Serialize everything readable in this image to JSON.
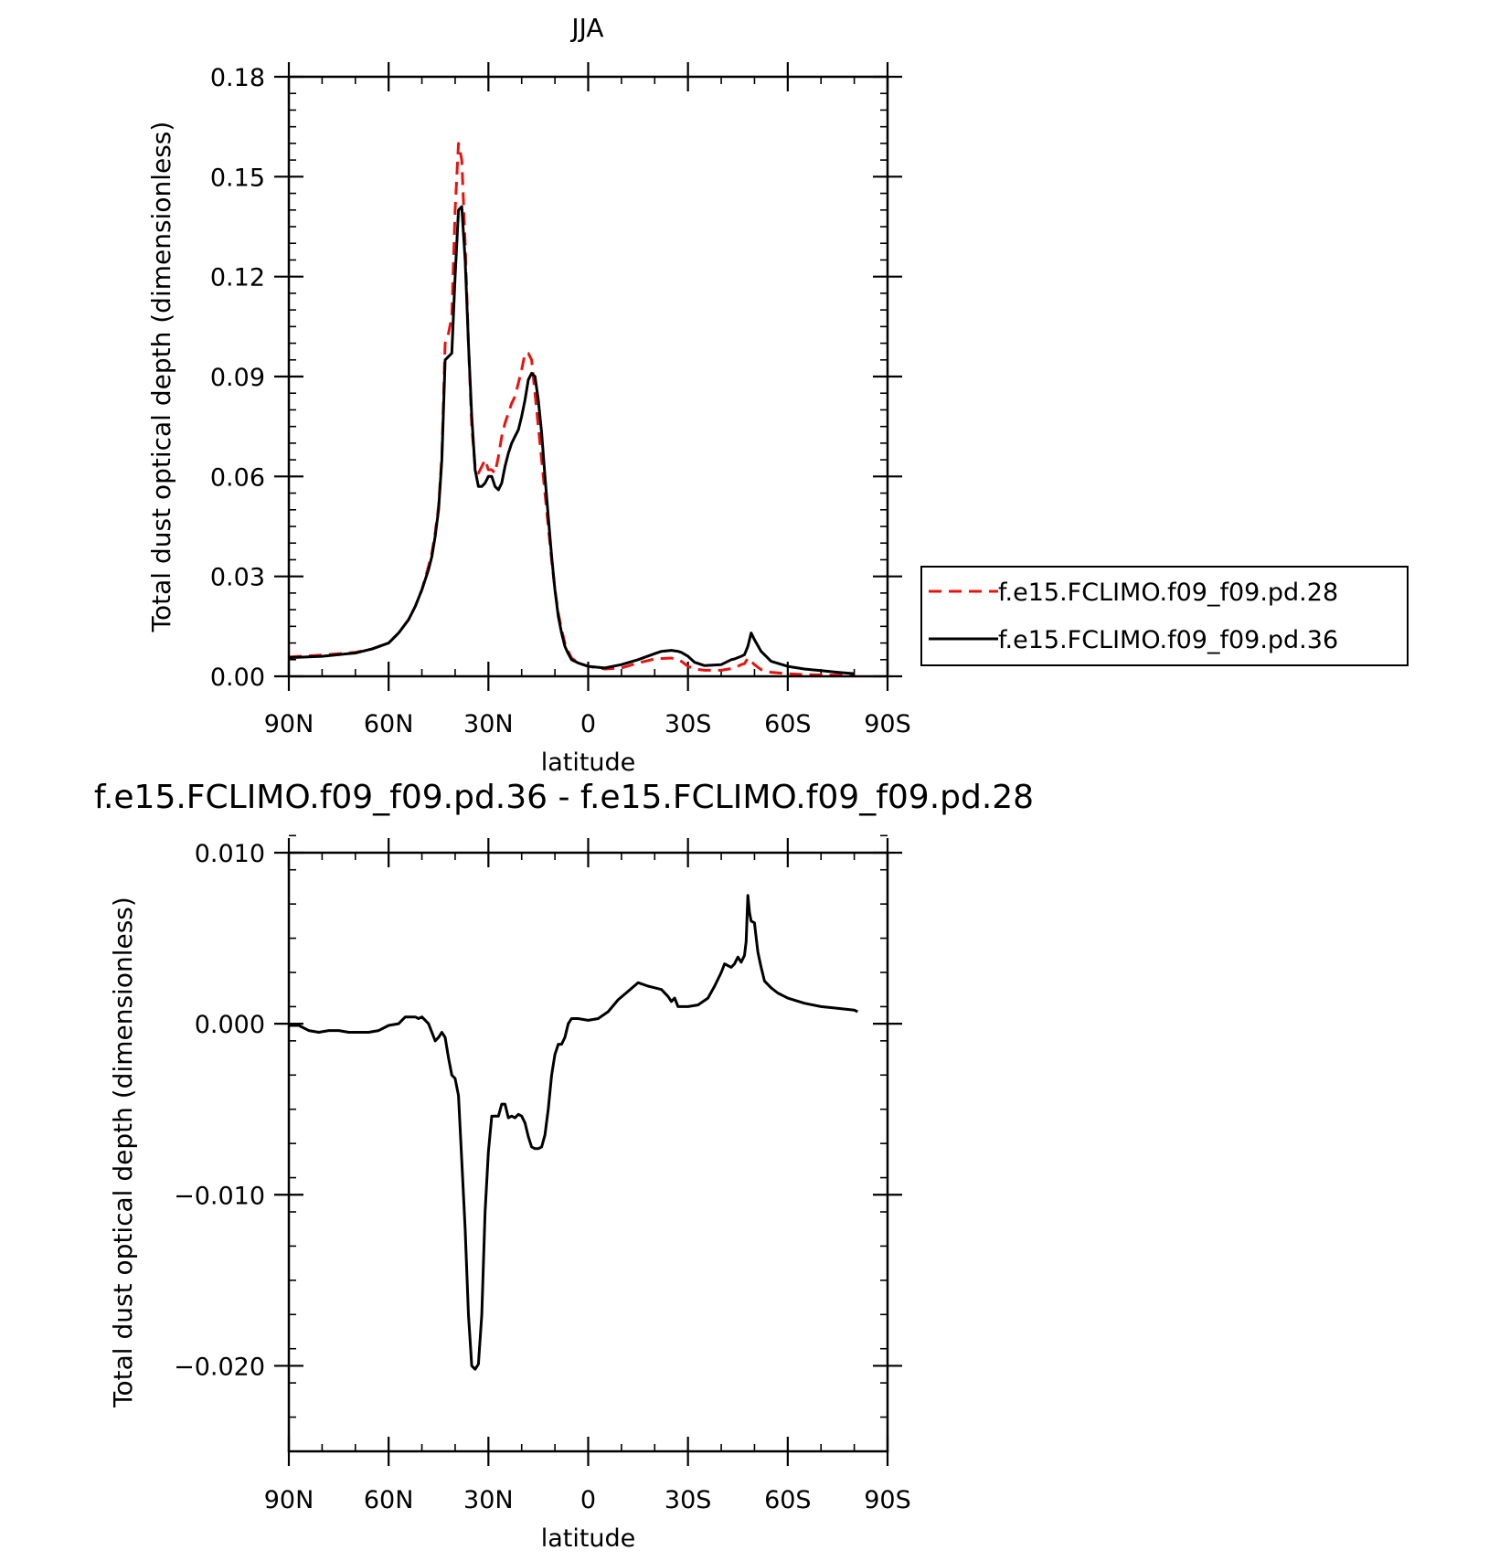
{
  "chart_data": [
    {
      "type": "line",
      "title": "JJA",
      "xlabel": "latitude",
      "ylabel": "Total dust optical depth (dimensionless)",
      "xlim": [
        90,
        -90
      ],
      "ylim": [
        0.0,
        0.18
      ],
      "x_ticks": [
        {
          "value": 90,
          "label": "90N"
        },
        {
          "value": 60,
          "label": "60N"
        },
        {
          "value": 30,
          "label": "30N"
        },
        {
          "value": 0,
          "label": "0"
        },
        {
          "value": -30,
          "label": "30S"
        },
        {
          "value": -60,
          "label": "60S"
        },
        {
          "value": -90,
          "label": "90S"
        }
      ],
      "y_ticks": [
        {
          "value": 0.0,
          "label": "0.00"
        },
        {
          "value": 0.03,
          "label": "0.03"
        },
        {
          "value": 0.06,
          "label": "0.06"
        },
        {
          "value": 0.09,
          "label": "0.09"
        },
        {
          "value": 0.12,
          "label": "0.12"
        },
        {
          "value": 0.15,
          "label": "0.15"
        },
        {
          "value": 0.18,
          "label": "0.18"
        }
      ],
      "legend_position": "right",
      "series": [
        {
          "name": "f.e15.FCLIMO.f09_f09.pd.28",
          "color": "#e8130f",
          "dash": "dashed",
          "x": [
            90,
            80,
            70,
            65,
            60,
            57,
            54,
            52,
            50,
            48,
            47,
            46,
            45,
            44,
            43,
            42,
            41,
            40,
            39,
            38,
            37,
            36,
            35,
            34,
            33,
            32,
            31,
            30,
            29,
            28,
            27,
            26,
            25,
            24,
            23,
            22,
            21,
            20,
            19,
            18,
            17,
            16,
            15,
            14,
            13,
            12,
            11,
            10,
            9,
            8,
            7,
            6,
            5,
            3,
            0,
            -5,
            -10,
            -15,
            -20,
            -25,
            -28,
            -30,
            -32,
            -35,
            -40,
            -44,
            -46,
            -47,
            -48,
            -49,
            -50,
            -52,
            -55,
            -60,
            -65,
            -70,
            -80
          ],
          "values": [
            0.0058,
            0.0064,
            0.0072,
            0.0082,
            0.01,
            0.013,
            0.017,
            0.021,
            0.026,
            0.033,
            0.037,
            0.043,
            0.051,
            0.066,
            0.1,
            0.103,
            0.108,
            0.14,
            0.16,
            0.155,
            0.13,
            0.1,
            0.075,
            0.063,
            0.061,
            0.063,
            0.065,
            0.062,
            0.062,
            0.061,
            0.066,
            0.072,
            0.076,
            0.079,
            0.082,
            0.084,
            0.088,
            0.092,
            0.097,
            0.097,
            0.095,
            0.085,
            0.075,
            0.065,
            0.055,
            0.045,
            0.035,
            0.026,
            0.019,
            0.014,
            0.01,
            0.0075,
            0.0055,
            0.004,
            0.003,
            0.0022,
            0.0025,
            0.004,
            0.0052,
            0.0055,
            0.0045,
            0.003,
            0.0022,
            0.0018,
            0.0018,
            0.0025,
            0.0035,
            0.0038,
            0.0055,
            0.0045,
            0.0035,
            0.002,
            0.0012,
            0.0008,
            0.0005,
            0.0004,
            0.0003
          ]
        },
        {
          "name": "f.e15.FCLIMO.f09_f09.pd.36",
          "color": "#000000",
          "dash": "solid",
          "x": [
            90,
            80,
            70,
            65,
            60,
            57,
            54,
            52,
            50,
            48,
            47,
            46,
            45,
            44,
            43,
            42,
            41,
            40,
            39,
            38,
            37,
            36,
            35,
            34,
            33,
            32,
            31,
            30,
            29,
            28,
            27,
            26,
            25,
            24,
            23,
            22,
            21,
            20,
            19,
            18,
            17,
            16,
            15,
            14,
            13,
            12,
            11,
            10,
            9,
            8,
            7,
            6,
            5,
            3,
            0,
            -5,
            -10,
            -15,
            -20,
            -22,
            -25,
            -27,
            -28,
            -30,
            -32,
            -35,
            -40,
            -43,
            -44,
            -46,
            -47,
            -48,
            -49,
            -50,
            -52,
            -55,
            -60,
            -65,
            -70,
            -75,
            -80
          ],
          "values": [
            0.0056,
            0.006,
            0.007,
            0.0082,
            0.01,
            0.013,
            0.017,
            0.021,
            0.026,
            0.032,
            0.036,
            0.042,
            0.05,
            0.065,
            0.095,
            0.096,
            0.097,
            0.12,
            0.14,
            0.141,
            0.125,
            0.1,
            0.078,
            0.062,
            0.057,
            0.057,
            0.058,
            0.06,
            0.06,
            0.057,
            0.056,
            0.058,
            0.063,
            0.067,
            0.07,
            0.072,
            0.074,
            0.078,
            0.083,
            0.089,
            0.091,
            0.09,
            0.083,
            0.073,
            0.06,
            0.048,
            0.036,
            0.026,
            0.018,
            0.013,
            0.009,
            0.0068,
            0.005,
            0.004,
            0.003,
            0.0025,
            0.0035,
            0.005,
            0.0068,
            0.0075,
            0.0078,
            0.0075,
            0.0072,
            0.006,
            0.0042,
            0.0032,
            0.0035,
            0.005,
            0.0052,
            0.006,
            0.0065,
            0.009,
            0.013,
            0.011,
            0.0075,
            0.0045,
            0.003,
            0.0022,
            0.0017,
            0.0012,
            0.0008
          ]
        }
      ]
    },
    {
      "type": "line",
      "title": "f.e15.FCLIMO.f09_f09.pd.36 - f.e15.FCLIMO.f09_f09.pd.28",
      "xlabel": "latitude",
      "ylabel": "Total dust optical depth (dimensionless)",
      "xlim": [
        90,
        -90
      ],
      "ylim": [
        -0.025,
        0.01
      ],
      "x_ticks": [
        {
          "value": 90,
          "label": "90N"
        },
        {
          "value": 60,
          "label": "60N"
        },
        {
          "value": 30,
          "label": "30N"
        },
        {
          "value": 0,
          "label": "0"
        },
        {
          "value": -30,
          "label": "30S"
        },
        {
          "value": -60,
          "label": "60S"
        },
        {
          "value": -90,
          "label": "90S"
        }
      ],
      "y_ticks": [
        {
          "value": 0.01,
          "label": "0.010"
        },
        {
          "value": 0.0,
          "label": "0.000"
        },
        {
          "value": -0.01,
          "label": "−0.010"
        },
        {
          "value": -0.02,
          "label": "−0.020"
        }
      ],
      "series": [
        {
          "color": "#000000",
          "dash": "solid",
          "x": [
            90,
            87,
            84,
            81,
            78,
            75,
            72,
            69,
            66,
            63,
            60,
            57,
            55,
            53,
            52,
            51,
            50,
            48,
            47,
            46,
            45,
            44,
            43,
            42,
            41,
            40,
            39,
            38,
            37,
            36,
            35,
            34,
            33,
            32,
            31,
            30,
            29,
            28,
            27,
            26,
            25,
            24,
            23,
            22,
            21,
            20,
            19,
            18,
            17,
            16,
            15,
            14,
            13,
            12,
            11,
            10,
            9,
            8,
            7,
            6,
            5,
            3,
            0,
            -3,
            -6,
            -9,
            -12,
            -15,
            -18,
            -20,
            -22,
            -24,
            -25,
            -26,
            -27,
            -28,
            -29,
            -30,
            -33,
            -36,
            -38,
            -40,
            -41,
            -42,
            -43,
            -44,
            -45,
            -46,
            -47,
            -47.5,
            -48,
            -48.5,
            -49,
            -50,
            -51,
            -52,
            -53,
            -55,
            -57,
            -60,
            -65,
            -70,
            -75,
            -80,
            -81
          ],
          "values": [
            -0.0001,
            -0.0001,
            -0.0004,
            -0.0005,
            -0.0004,
            -0.0004,
            -0.0005,
            -0.0005,
            -0.0005,
            -0.0004,
            -0.0001,
            0.0,
            0.0004,
            0.0004,
            0.0004,
            0.0003,
            0.0004,
            0.0,
            -0.0005,
            -0.001,
            -0.0008,
            -0.0005,
            -0.0008,
            -0.002,
            -0.003,
            -0.0032,
            -0.0042,
            -0.008,
            -0.012,
            -0.017,
            -0.02,
            -0.0202,
            -0.0199,
            -0.017,
            -0.011,
            -0.0075,
            -0.0054,
            -0.0054,
            -0.0054,
            -0.0047,
            -0.0047,
            -0.0055,
            -0.0054,
            -0.0055,
            -0.0053,
            -0.0054,
            -0.0058,
            -0.0066,
            -0.0072,
            -0.0073,
            -0.0073,
            -0.0072,
            -0.0065,
            -0.005,
            -0.003,
            -0.0018,
            -0.0012,
            -0.0012,
            -0.0008,
            0.0,
            0.0003,
            0.0003,
            0.0002,
            0.0003,
            0.0007,
            0.0014,
            0.0019,
            0.0024,
            0.0022,
            0.0021,
            0.002,
            0.0016,
            0.0013,
            0.0015,
            0.001,
            0.001,
            0.001,
            0.001,
            0.0011,
            0.0015,
            0.0022,
            0.003,
            0.0035,
            0.0034,
            0.0033,
            0.0035,
            0.0039,
            0.0036,
            0.004,
            0.0048,
            0.0075,
            0.0065,
            0.006,
            0.0059,
            0.0042,
            0.0033,
            0.0025,
            0.0021,
            0.0018,
            0.0015,
            0.0012,
            0.001,
            0.0009,
            0.0008,
            0.0007
          ]
        }
      ]
    }
  ]
}
